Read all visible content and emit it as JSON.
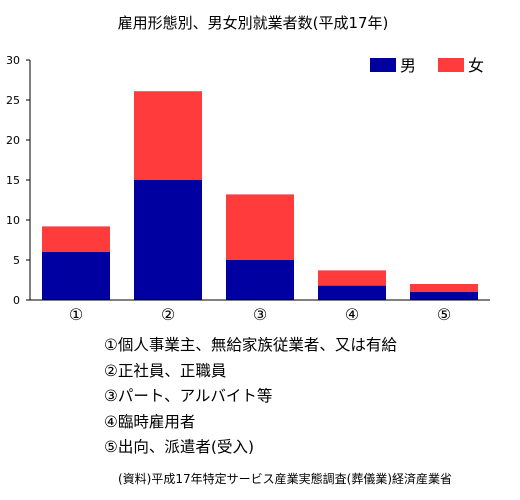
{
  "chart_data": {
    "type": "bar",
    "stacked": true,
    "title": "雇用形態別、男女別就業者数(平成17年)",
    "categories": [
      "①",
      "②",
      "③",
      "④",
      "⑤"
    ],
    "series": [
      {
        "name": "男",
        "color": "#0000a0",
        "values": [
          6,
          15,
          5,
          1.8,
          1.0
        ]
      },
      {
        "name": "女",
        "color": "#ff3b3b",
        "values": [
          3.2,
          11.1,
          8.2,
          1.9,
          1.0
        ]
      }
    ],
    "ylim": [
      0,
      30
    ],
    "yticks": [
      0,
      5,
      10,
      15,
      20,
      25,
      30
    ],
    "legend": "top-right",
    "grid": false
  },
  "notes": [
    "①個人事業主、無給家族従業者、又は有給",
    "②正社員、正職員",
    "③パート、アルバイト等",
    "④臨時雇用者",
    "⑤出向、派遣者(受入)"
  ],
  "source": "(資料)平成17年特定サービス産業実態調査(葬儀業)経済産業省"
}
